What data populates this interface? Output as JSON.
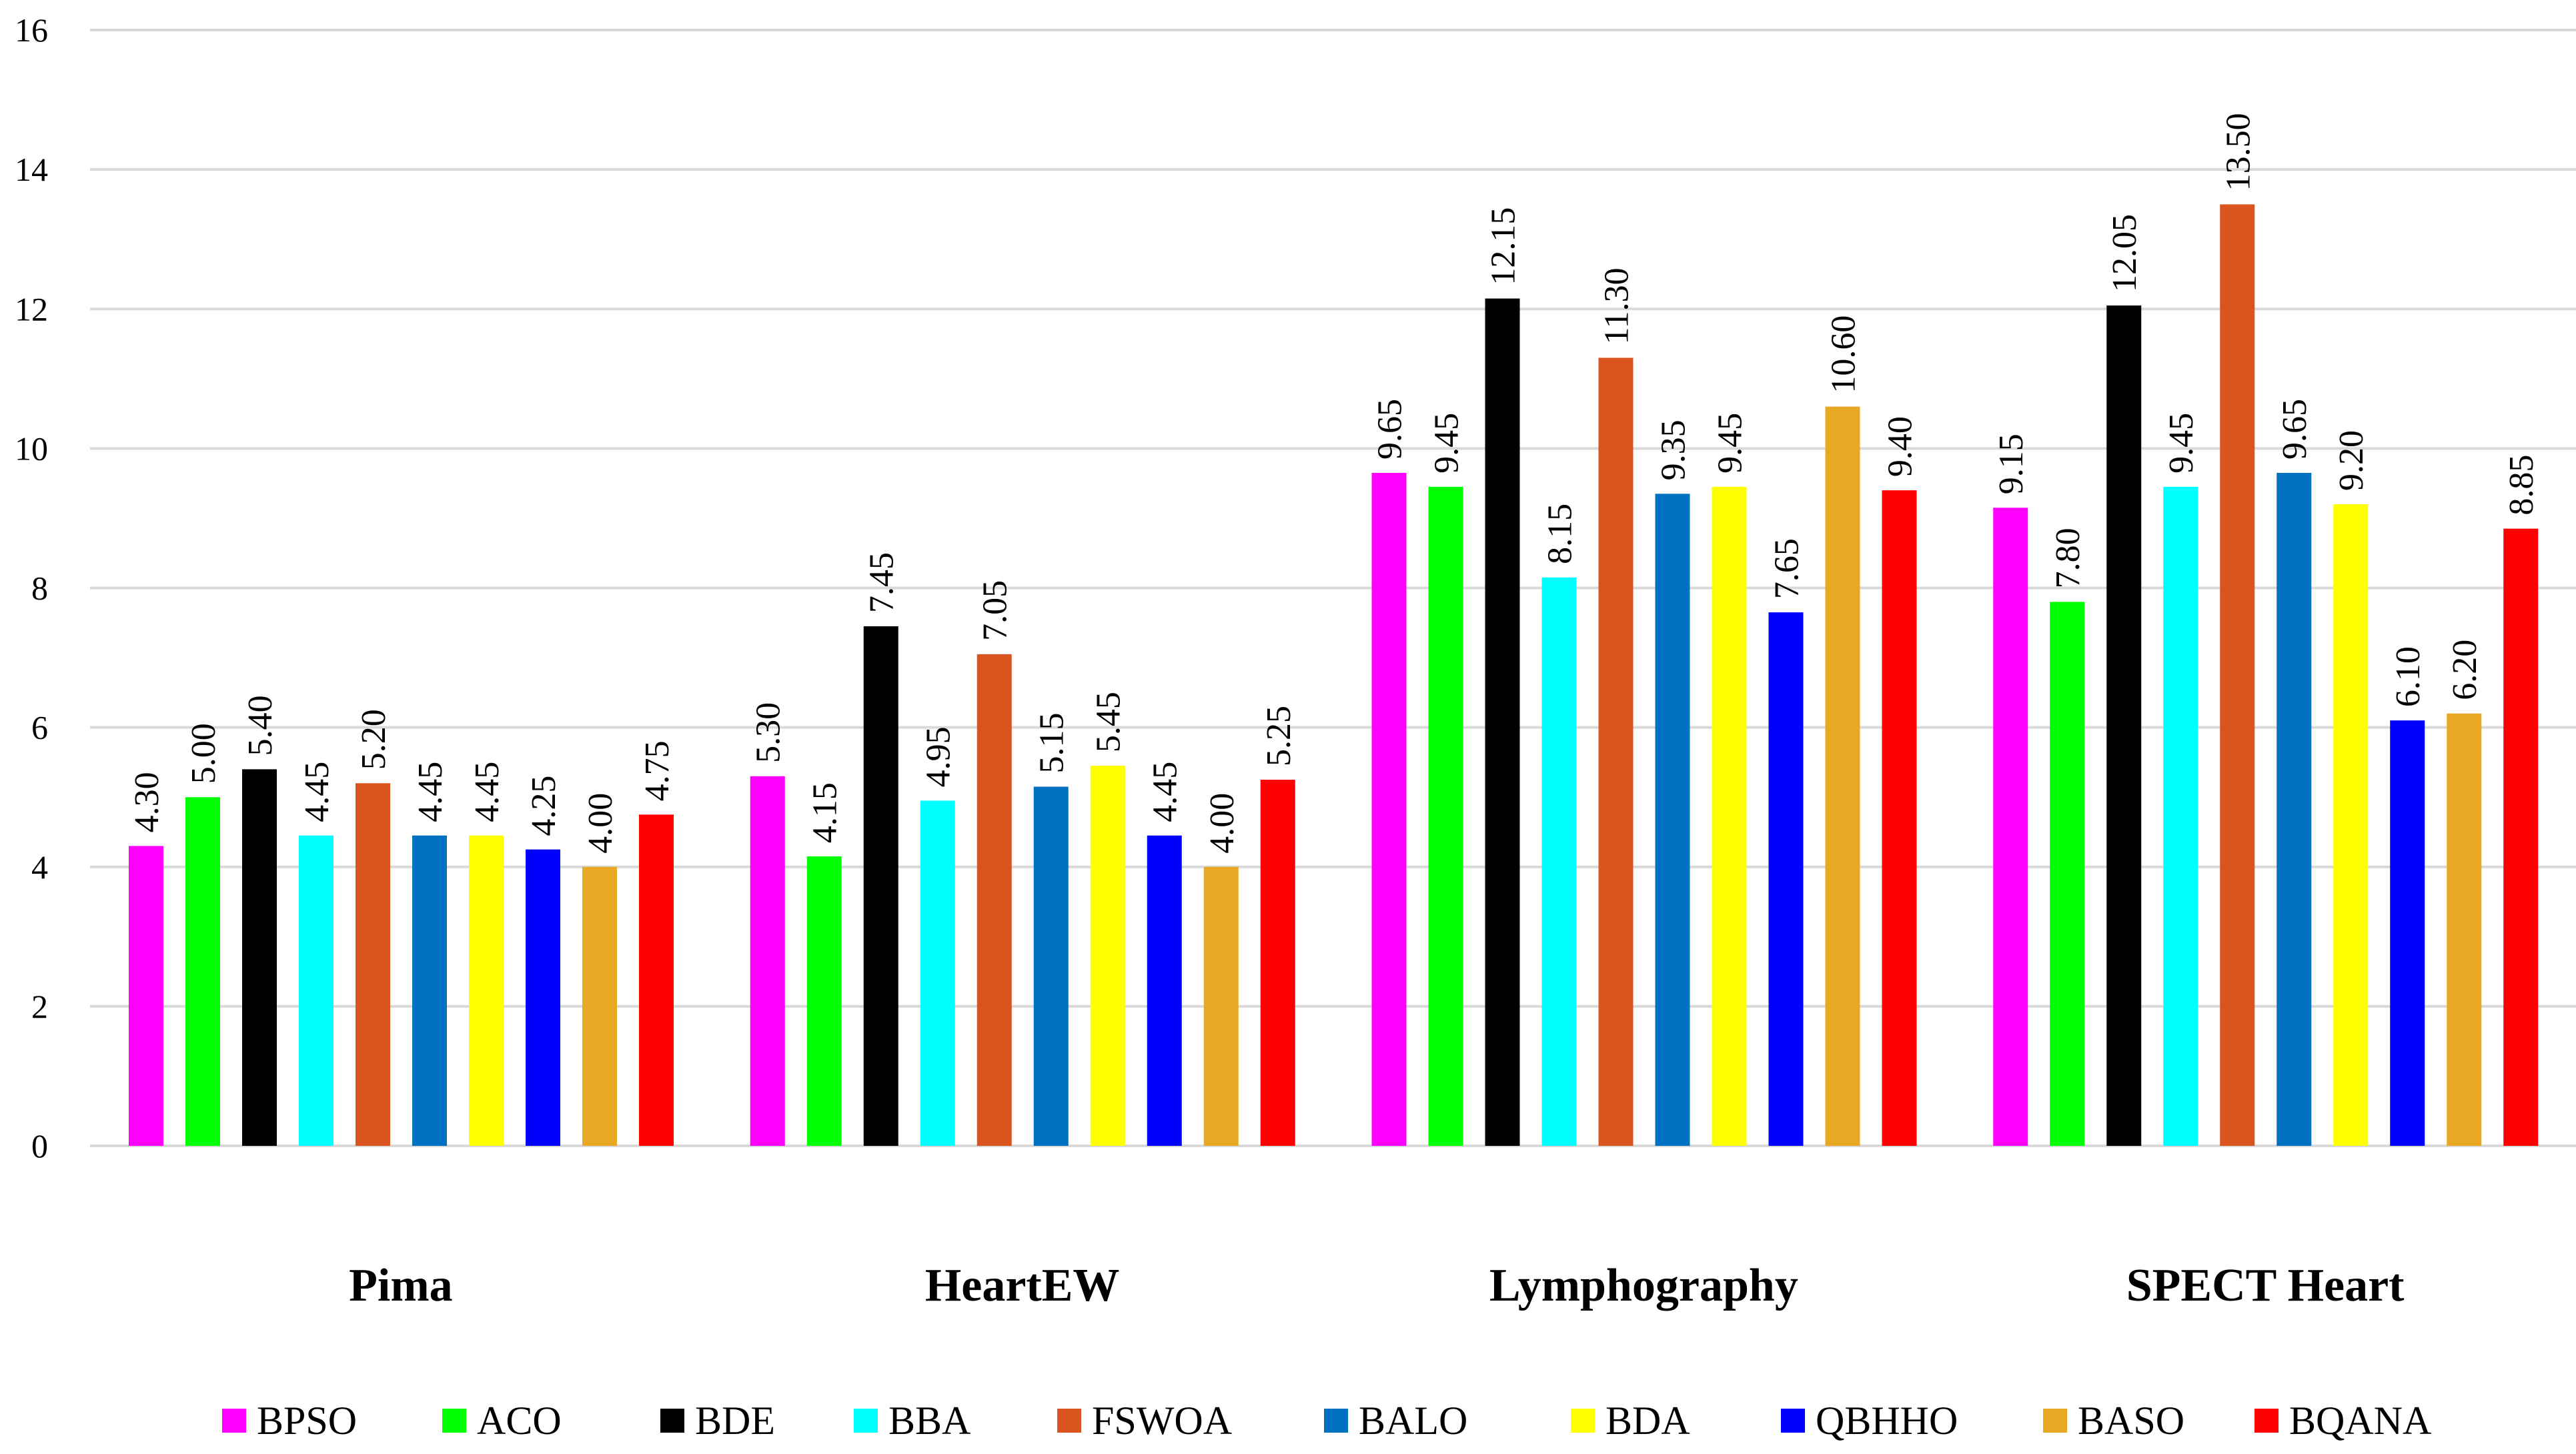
{
  "chart_data": {
    "type": "bar",
    "title": "",
    "xlabel": "",
    "ylabel": "",
    "ylim": [
      0,
      16
    ],
    "yticks": [
      0,
      2,
      4,
      6,
      8,
      10,
      12,
      14,
      16
    ],
    "grid": true,
    "legend": "bottom",
    "categories": [
      "Pima",
      "HeartEW",
      "Lymphography",
      "SPECT Heart"
    ],
    "series": [
      {
        "name": "BPSO",
        "color": "#ff00ff",
        "values": [
          4.3,
          5.3,
          9.65,
          9.15
        ],
        "labels": [
          "4.30",
          "5.30",
          "9.65",
          "9.15"
        ]
      },
      {
        "name": "ACO",
        "color": "#00ff00",
        "values": [
          5.0,
          4.15,
          9.45,
          7.8
        ],
        "labels": [
          "5.00",
          "4.15",
          "9.45",
          "7.80"
        ]
      },
      {
        "name": "BDE",
        "color": "#000000",
        "values": [
          5.4,
          7.45,
          12.15,
          12.05
        ],
        "labels": [
          "5.40",
          "7.45",
          "12.15",
          "12.05"
        ]
      },
      {
        "name": "BBA",
        "color": "#00ffff",
        "values": [
          4.45,
          4.95,
          8.15,
          9.45
        ],
        "labels": [
          "4.45",
          "4.95",
          "8.15",
          "9.45"
        ]
      },
      {
        "name": "FSWOA",
        "color": "#d9541e",
        "values": [
          5.2,
          7.05,
          11.3,
          13.5
        ],
        "labels": [
          "5.20",
          "7.05",
          "11.30",
          "13.50"
        ]
      },
      {
        "name": "BALO",
        "color": "#0070c0",
        "values": [
          4.45,
          5.15,
          9.35,
          9.65
        ],
        "labels": [
          "4.45",
          "5.15",
          "9.35",
          "9.65"
        ]
      },
      {
        "name": "BDA",
        "color": "#ffff00",
        "values": [
          4.45,
          5.45,
          9.45,
          9.2
        ],
        "labels": [
          "4.45",
          "5.45",
          "9.45",
          "9.20"
        ]
      },
      {
        "name": "QBHHO",
        "color": "#0000ff",
        "values": [
          4.25,
          4.45,
          7.65,
          6.1
        ],
        "labels": [
          "4.25",
          "4.45",
          "7.65",
          "6.10"
        ]
      },
      {
        "name": "BASO",
        "color": "#e9a823",
        "values": [
          4.0,
          4.0,
          10.6,
          6.2
        ],
        "labels": [
          "4.00",
          "4.00",
          "10.60",
          "6.20"
        ]
      },
      {
        "name": "BQANA",
        "color": "#ff0000",
        "values": [
          4.75,
          5.25,
          9.4,
          8.85
        ],
        "labels": [
          "4.75",
          "5.25",
          "9.40",
          "8.85"
        ]
      }
    ]
  }
}
